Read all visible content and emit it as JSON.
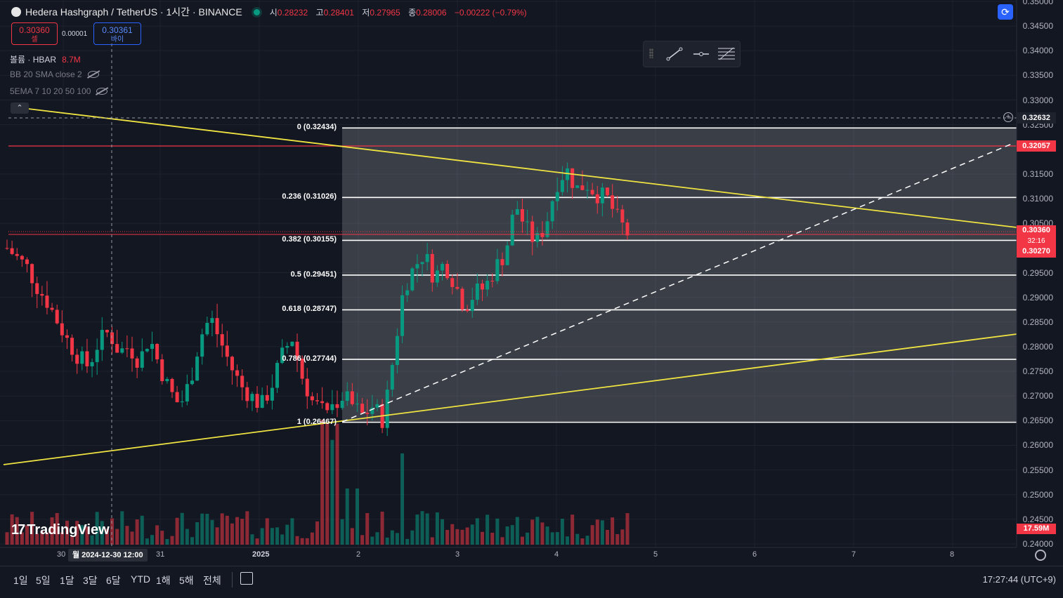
{
  "header": {
    "title": "Hedera Hashgraph / TetherUS · 1시간 · BINANCE",
    "ohlc": {
      "open_label": "시",
      "open": "0.28232",
      "high_label": "고",
      "high": "0.28401",
      "low_label": "저",
      "low": "0.27965",
      "close_label": "종",
      "close": "0.28006",
      "change": "−0.00222 (−0.79%)"
    }
  },
  "trade": {
    "sell_price": "0.30360",
    "sell_label": "셀",
    "spread": "0.00001",
    "buy_price": "0.30361",
    "buy_label": "바이"
  },
  "indicators": [
    {
      "label": "볼륨 · HBAR",
      "value": "8.7M"
    },
    {
      "label": "BB 20 SMA close 2",
      "value": ""
    },
    {
      "label": "5EMA 7 10 20 50 100",
      "value": ""
    }
  ],
  "price_axis": {
    "labels": [
      "0.35000",
      "0.34500",
      "0.34000",
      "0.33500",
      "0.33000",
      "0.32500",
      "0.31500",
      "0.31000",
      "0.30500",
      "0.29500",
      "0.29000",
      "0.28500",
      "0.28000",
      "0.27500",
      "0.27000",
      "0.26500",
      "0.26000",
      "0.25500",
      "0.25000",
      "0.24500",
      "0.24000"
    ],
    "crosshair_price": "0.32632",
    "red_line_price": "0.32057",
    "current_price": "0.30360",
    "countdown": "32:16",
    "bid_price": "0.30270",
    "volume_badge": "17.59M"
  },
  "fib": {
    "levels": [
      {
        "ratio": "0",
        "price": 0.32434,
        "label": "0 (0.32434)"
      },
      {
        "ratio": "0.236",
        "price": 0.31026,
        "label": "0.236 (0.31026)"
      },
      {
        "ratio": "0.382",
        "price": 0.30155,
        "label": "0.382 (0.30155)"
      },
      {
        "ratio": "0.5",
        "price": 0.29451,
        "label": "0.5 (0.29451)"
      },
      {
        "ratio": "0.618",
        "price": 0.28747,
        "label": "0.618 (0.28747)"
      },
      {
        "ratio": "0.786",
        "price": 0.27744,
        "label": "0.786 (0.27744)"
      },
      {
        "ratio": "1",
        "price": 0.26467,
        "label": "1 (0.26467)"
      }
    ]
  },
  "time_axis": {
    "labels": [
      "30",
      "31",
      "2025",
      "2",
      "3",
      "4",
      "5",
      "6",
      "7",
      "8"
    ],
    "crosshair_time": "월 2024-12-30   12:00"
  },
  "brand": "TradingView",
  "bottom_bar": {
    "timeframes": [
      "1일",
      "5일",
      "1달",
      "3달",
      "6달",
      "YTD",
      "1해",
      "5해",
      "전체"
    ],
    "clock": "17:27:44 (UTC+9)"
  },
  "colors": {
    "background": "#131722",
    "up": "#089981",
    "down": "#f23645",
    "trendline": "#f0e442",
    "fib": "#ffffff",
    "accent": "#2962ff"
  },
  "chart_data": {
    "type": "candlestick",
    "ylim": [
      0.24,
      0.35
    ],
    "candles_close_path": [
      0.3,
      0.298,
      0.296,
      0.292,
      0.289,
      0.285,
      0.281,
      0.278,
      0.276,
      0.281,
      0.283,
      0.279,
      0.28,
      0.277,
      0.282,
      0.276,
      0.271,
      0.268,
      0.273,
      0.282,
      0.286,
      0.281,
      0.276,
      0.272,
      0.27,
      0.268,
      0.272,
      0.278,
      0.282,
      0.274,
      0.269,
      0.267,
      0.268,
      0.27,
      0.268,
      0.266,
      0.268,
      0.265,
      0.278,
      0.292,
      0.296,
      0.299,
      0.294,
      0.297,
      0.293,
      0.288,
      0.291,
      0.292,
      0.296,
      0.299,
      0.309,
      0.304,
      0.301,
      0.305,
      0.313,
      0.316,
      0.312,
      0.313,
      0.311,
      0.31,
      0.306,
      0.303
    ]
  }
}
